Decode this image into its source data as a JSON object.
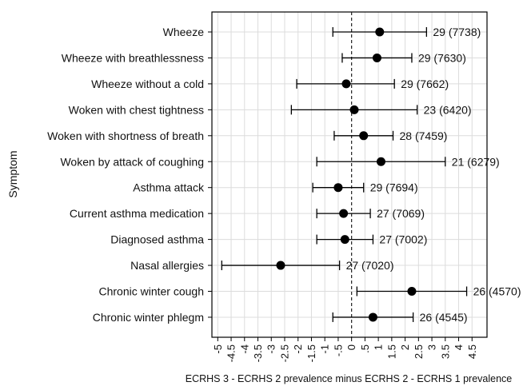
{
  "chart_data": {
    "type": "scatter",
    "subtype": "forest-plot",
    "xlabel": "ECRHS 3 - ECRHS 2 prevalence minus ECRHS 2 - ECRHS 1 prevalence",
    "ylabel": "Symptom",
    "xlim": [
      -5,
      5
    ],
    "xticks": [
      -5,
      -4.5,
      -4,
      -3.5,
      -3,
      -2.5,
      -2,
      -1.5,
      -1,
      -0.5,
      0,
      0.5,
      1,
      1.5,
      2,
      2.5,
      3,
      3.5,
      4,
      4.5
    ],
    "xtick_labels": [
      "-5",
      "-4.5",
      "-4",
      "-3.5",
      "-3",
      "-2.5",
      "-2",
      "-1.5",
      "-1",
      "-.5",
      "0",
      ".5",
      "1",
      "1.5",
      "2",
      "2.5",
      "3",
      "3.5",
      "4",
      "4.5"
    ],
    "reference_line_x": 0,
    "grid": true,
    "rows": [
      {
        "label": "Wheeze",
        "estimate": 1.05,
        "lower": -0.7,
        "upper": 2.8,
        "annotation": "29 (7738)"
      },
      {
        "label": "Wheeze with breathlessness",
        "estimate": 0.95,
        "lower": -0.35,
        "upper": 2.25,
        "annotation": "29 (7630)"
      },
      {
        "label": "Wheeze without a cold",
        "estimate": -0.2,
        "lower": -2.05,
        "upper": 1.6,
        "annotation": "29 (7662)"
      },
      {
        "label": "Woken with chest tightness",
        "estimate": 0.1,
        "lower": -2.25,
        "upper": 2.45,
        "annotation": "23 (6420)"
      },
      {
        "label": "Woken with shortness of breath",
        "estimate": 0.45,
        "lower": -0.65,
        "upper": 1.55,
        "annotation": "28 (7459)"
      },
      {
        "label": "Woken by attack of coughing",
        "estimate": 1.1,
        "lower": -1.3,
        "upper": 3.5,
        "annotation": "21 (6279)"
      },
      {
        "label": "Asthma attack",
        "estimate": -0.5,
        "lower": -1.45,
        "upper": 0.45,
        "annotation": "29 (7694)"
      },
      {
        "label": "Current asthma medication",
        "estimate": -0.3,
        "lower": -1.3,
        "upper": 0.7,
        "annotation": "27 (7069)"
      },
      {
        "label": "Diagnosed asthma",
        "estimate": -0.25,
        "lower": -1.3,
        "upper": 0.8,
        "annotation": "27 (7002)"
      },
      {
        "label": "Nasal allergies",
        "estimate": -2.65,
        "lower": -4.85,
        "upper": -0.45,
        "annotation": "27 (7020)"
      },
      {
        "label": "Chronic winter cough",
        "estimate": 2.25,
        "lower": 0.2,
        "upper": 4.3,
        "annotation": "26 (4570)"
      },
      {
        "label": "Chronic winter phlegm",
        "estimate": 0.8,
        "lower": -0.7,
        "upper": 2.3,
        "annotation": "26 (4545)"
      }
    ]
  }
}
